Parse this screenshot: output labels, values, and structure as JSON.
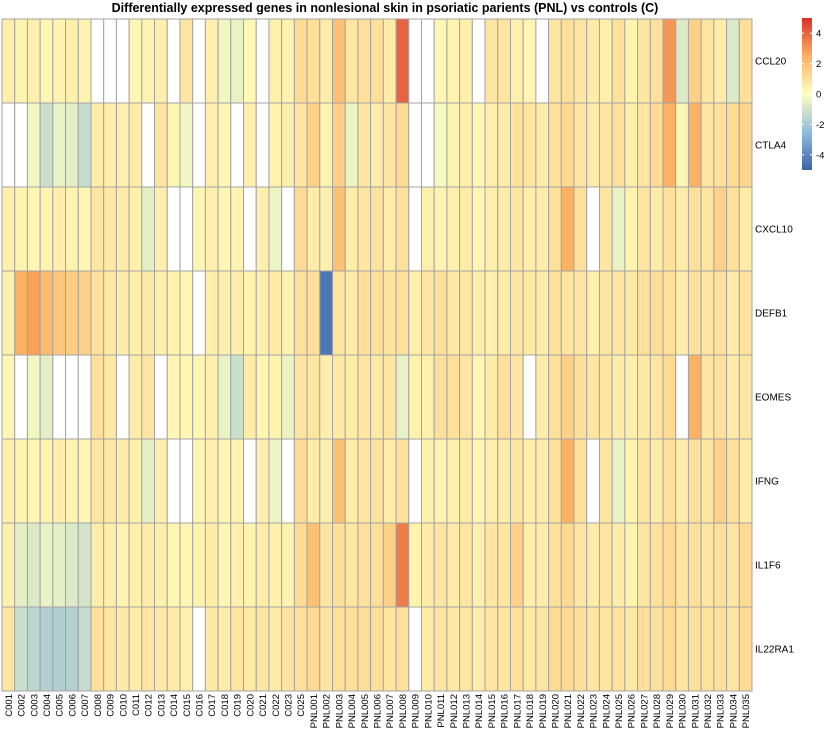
{
  "chart_data": {
    "type": "heatmap",
    "title": "Differentially expressed genes in nonlesional skin in psoriatic parients (PNL) vs controls (C)",
    "rows": [
      "CCL20",
      "CTLA4",
      "CXCL10",
      "DEFB1",
      "EOMES",
      "IFNG",
      "IL1F6",
      "IL22RA1"
    ],
    "columns": [
      "C001",
      "C002",
      "C003",
      "C004",
      "C005",
      "C006",
      "C007",
      "C008",
      "C009",
      "C010",
      "C011",
      "C012",
      "C013",
      "C014",
      "C015",
      "C016",
      "C017",
      "C018",
      "C019",
      "C020",
      "C021",
      "C022",
      "C023",
      "C025",
      "PNL001",
      "PNL002",
      "PNL003",
      "PNL004",
      "PNL005",
      "PNL006",
      "PNL007",
      "PNL008",
      "PNL009",
      "PNL010",
      "PNL011",
      "PNL012",
      "PNL013",
      "PNL014",
      "PNL015",
      "PNL016",
      "PNL017",
      "PNL018",
      "PNL019",
      "PNL020",
      "PNL021",
      "PNL022",
      "PNL023",
      "PNL024",
      "PNL025",
      "PNL026",
      "PNL027",
      "PNL028",
      "PNL029",
      "PNL030",
      "PNL031",
      "PNL032",
      "PNL033",
      "PNL034",
      "PNL035"
    ],
    "values": [
      [
        0.5,
        0.4,
        0.5,
        0.3,
        0.4,
        0.5,
        0.4,
        0,
        0,
        0,
        0.3,
        0.4,
        0.5,
        0,
        0.8,
        0,
        0.5,
        -0.3,
        -0.5,
        0.2,
        0,
        0.5,
        0.4,
        1.2,
        1.0,
        0.6,
        2.0,
        0.8,
        1.0,
        1.0,
        0.6,
        4.0,
        0,
        0,
        0.3,
        0.4,
        0.5,
        0,
        0.8,
        0.8,
        0.5,
        0.3,
        0,
        0.8,
        1.0,
        0.8,
        0.6,
        0.5,
        1.0,
        0.4,
        0.8,
        1.0,
        3.0,
        -0.8,
        1.5,
        0.8,
        0.6,
        -0.8,
        1.0
      ],
      [
        0,
        0,
        -0.3,
        -1.2,
        -0.5,
        -0.6,
        -1.3,
        0.6,
        0.5,
        0.5,
        0.6,
        0,
        0.8,
        0.3,
        -0.3,
        0,
        0.5,
        0.3,
        0,
        0.5,
        0,
        0.4,
        0.5,
        0.8,
        1.5,
        0.4,
        1.5,
        -0.4,
        0.8,
        0.6,
        0.8,
        1.2,
        0,
        0,
        -0.2,
        0.4,
        0.5,
        0.3,
        0.5,
        0.6,
        1.0,
        0.8,
        0.6,
        1.0,
        1.2,
        0.8,
        0.6,
        0.8,
        1.0,
        0.5,
        0.8,
        1.2,
        2.5,
        0.3,
        2.5,
        0.8,
        1.0,
        1.2,
        1.3
      ],
      [
        0.5,
        0.4,
        0.3,
        0.4,
        0.5,
        0.4,
        0.3,
        0.8,
        0.7,
        0.6,
        0.5,
        -0.6,
        0.5,
        0,
        0,
        0.3,
        0.5,
        0.3,
        0.4,
        0,
        0.5,
        -0.4,
        0,
        1.2,
        0.6,
        0.5,
        2.0,
        0.6,
        0.8,
        0.9,
        0.6,
        1.0,
        0,
        0.5,
        0.4,
        0.5,
        0.6,
        0.3,
        0.5,
        0.6,
        0.8,
        0.5,
        0.6,
        1.0,
        2.5,
        1.0,
        0,
        0.8,
        -0.5,
        0.4,
        0.8,
        0.6,
        1.0,
        0.6,
        1.0,
        0.8,
        1.5,
        1.0,
        0.6
      ],
      [
        0.5,
        2.5,
        2.8,
        2.2,
        1.8,
        1.6,
        1.5,
        1.0,
        0.7,
        0.6,
        0.5,
        0.7,
        0.5,
        0.4,
        0.3,
        0,
        0.5,
        0.5,
        0.6,
        0.4,
        0.5,
        0.6,
        0.4,
        1.0,
        1.0,
        -4.5,
        0.8,
        0.6,
        1.0,
        1.0,
        0.9,
        1.0,
        0.5,
        0.8,
        1.0,
        0.7,
        0.8,
        0.6,
        0.5,
        0.6,
        0.8,
        0.7,
        0.6,
        1.0,
        0.8,
        0.8,
        0.5,
        0.8,
        0.8,
        0.7,
        1.0,
        1.1,
        1.0,
        0.6,
        1.0,
        0.8,
        1.0,
        0.6,
        0.9
      ],
      [
        0.3,
        0,
        -0.3,
        -0.6,
        0,
        0,
        0,
        1.0,
        0.7,
        0,
        0.6,
        0.8,
        0,
        0.3,
        0.3,
        0.3,
        0.5,
        -0.5,
        -1.2,
        0.6,
        0.3,
        0.4,
        -0.4,
        0.8,
        0.8,
        0.5,
        0.7,
        0.6,
        0.8,
        0.7,
        0.8,
        -0.5,
        0.4,
        0.5,
        1.0,
        1.0,
        0.8,
        0.3,
        0.6,
        1.0,
        0.8,
        0,
        0.6,
        1.0,
        1.5,
        1.0,
        0.8,
        0.8,
        0.6,
        0.5,
        0.7,
        0.8,
        1.2,
        0,
        2.5,
        0.8,
        1.0,
        0.6,
        0.8
      ],
      [
        0.5,
        0.4,
        0.3,
        0.4,
        0.5,
        0.4,
        0.3,
        0.8,
        0.7,
        0.6,
        0.5,
        -0.6,
        0.5,
        0,
        0,
        0.3,
        0.5,
        0.3,
        0.4,
        0,
        0.5,
        -0.4,
        0,
        1.2,
        0.6,
        0.5,
        2.0,
        0.6,
        0.8,
        0.9,
        0.6,
        1.0,
        0,
        0.5,
        0.4,
        0.5,
        0.6,
        0.3,
        0.5,
        0.6,
        0.8,
        0.5,
        0.6,
        1.0,
        2.5,
        1.0,
        0,
        0.8,
        -0.5,
        0.4,
        0.8,
        0.6,
        1.0,
        0.6,
        1.0,
        0.8,
        1.5,
        1.0,
        0.6
      ],
      [
        0.5,
        -0.6,
        -0.8,
        -0.5,
        -0.6,
        -0.8,
        -1.0,
        0.6,
        0.5,
        0.4,
        0.5,
        0.6,
        0.5,
        0.3,
        0.3,
        0.4,
        0.6,
        0.3,
        0.5,
        0.4,
        0.6,
        0.5,
        0.4,
        1.2,
        2.0,
        0.8,
        1.0,
        0.8,
        1.0,
        1.0,
        1.5,
        3.5,
        0.4,
        0.6,
        0.8,
        0.6,
        0.8,
        0.5,
        0.8,
        0.8,
        1.5,
        0.5,
        0.6,
        1.0,
        1.2,
        0.8,
        0.6,
        0.8,
        0.6,
        0.4,
        0.8,
        1.0,
        1.2,
        0.8,
        1.0,
        0.8,
        1.0,
        0.8,
        1.2
      ],
      [
        0.8,
        -1.2,
        -1.5,
        -1.8,
        -1.8,
        -1.7,
        -1.3,
        1.0,
        0.8,
        0.7,
        0.6,
        0.8,
        0.7,
        0.6,
        0.5,
        0,
        0.7,
        0.6,
        0.8,
        0.7,
        0.8,
        0.6,
        0.8,
        1.0,
        1.2,
        0.8,
        1.0,
        1.0,
        1.1,
        1.0,
        0.8,
        1.0,
        0,
        0.6,
        0.8,
        0.7,
        0.8,
        0.6,
        0.8,
        0.8,
        1.0,
        0.7,
        0.8,
        1.2,
        1.2,
        1.0,
        0.8,
        0.8,
        0.9,
        0.7,
        1.0,
        1.0,
        1.2,
        0.8,
        1.0,
        0.9,
        1.0,
        0.8,
        1.2
      ]
    ],
    "legend": {
      "ticks": [
        4,
        2,
        0,
        -2,
        -4
      ],
      "range": [
        -5,
        5
      ],
      "colors": [
        "#3B64AA",
        "#91BCDB",
        "#FFFFBF",
        "#FDB163",
        "#D73027"
      ],
      "placement": "top-right"
    }
  }
}
